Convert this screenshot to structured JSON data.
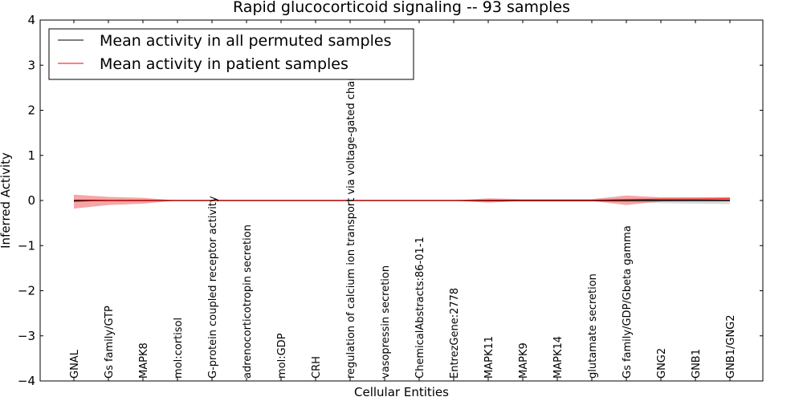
{
  "chart_data": {
    "type": "line",
    "title": "Rapid glucocorticoid signaling -- 93 samples",
    "xlabel": "Cellular Entities",
    "ylabel": "Inferred Activity",
    "ylim": [
      -4,
      4
    ],
    "yticks": [
      -4,
      -3,
      -2,
      -1,
      0,
      1,
      2,
      3,
      4
    ],
    "ytick_labels": [
      "−4",
      "−3",
      "−2",
      "−1",
      "0",
      "1",
      "2",
      "3",
      "4"
    ],
    "grid": false,
    "legend_position": "top-left",
    "categories": [
      "GNAL",
      "Gs family/GTP",
      "MAPK8",
      "mol:cortisol",
      "G-protein coupled receptor activity",
      "adrenocorticotropin secretion",
      "mol:GDP",
      "CRH",
      "regulation of calcium ion transport via voltage-gated channel",
      "vasopressin secretion",
      "ChemicalAbstracts:86-01-1",
      "EntrezGene:2778",
      "MAPK11",
      "MAPK9",
      "MAPK14",
      "glutamate secretion",
      "Gs family/GDP/Gbeta gamma",
      "GNG2",
      "GNB1",
      "GNB1/GNG2"
    ],
    "series": [
      {
        "name": "Mean activity in all permuted samples",
        "color": "#000000",
        "band_color": "#bbbbbb",
        "values": [
          0.0,
          0.0,
          0.0,
          0.0,
          0.0,
          0.0,
          0.0,
          0.0,
          0.0,
          0.0,
          0.0,
          0.0,
          0.0,
          0.0,
          0.0,
          0.0,
          0.0,
          0.0,
          0.0,
          0.0
        ],
        "lower": [
          -0.01,
          -0.01,
          -0.01,
          0.0,
          0.0,
          0.0,
          0.0,
          0.0,
          0.0,
          0.0,
          0.0,
          0.0,
          -0.01,
          -0.02,
          -0.02,
          -0.02,
          -0.04,
          -0.06,
          -0.07,
          -0.08
        ],
        "upper": [
          0.01,
          0.01,
          0.01,
          0.0,
          0.0,
          0.0,
          0.0,
          0.0,
          0.0,
          0.0,
          0.0,
          0.0,
          0.01,
          0.02,
          0.02,
          0.02,
          0.04,
          0.06,
          0.07,
          0.08
        ]
      },
      {
        "name": "Mean activity in patient samples",
        "color": "#ff0000",
        "band_color": "#f08080",
        "values": [
          -0.02,
          0.0,
          0.0,
          0.0,
          0.0,
          0.0,
          0.0,
          0.0,
          0.0,
          0.0,
          0.0,
          0.0,
          0.01,
          0.01,
          0.01,
          0.01,
          0.02,
          0.03,
          0.03,
          0.04
        ],
        "lower": [
          -0.18,
          -0.1,
          -0.07,
          0.0,
          0.0,
          0.0,
          0.0,
          0.0,
          0.0,
          0.0,
          0.0,
          0.0,
          -0.05,
          -0.01,
          -0.01,
          -0.01,
          -0.1,
          -0.02,
          -0.01,
          -0.01
        ],
        "upper": [
          0.13,
          0.08,
          0.06,
          0.0,
          0.0,
          0.0,
          0.0,
          0.0,
          0.0,
          0.0,
          0.0,
          0.0,
          0.05,
          0.03,
          0.03,
          0.03,
          0.11,
          0.07,
          0.07,
          0.07
        ]
      }
    ]
  }
}
